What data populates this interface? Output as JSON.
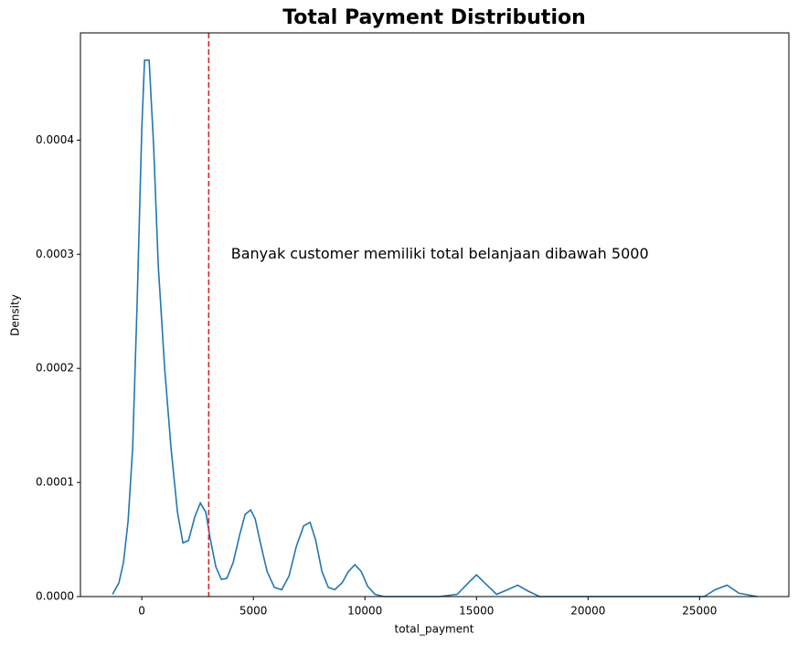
{
  "chart_data": {
    "type": "line",
    "title": "Total Payment Distribution",
    "xlabel": "total_payment",
    "ylabel": "Density",
    "x": [
      -1311,
      -1025,
      -820,
      -615,
      -410,
      -205,
      0,
      123,
      328,
      533,
      738,
      1025,
      1311,
      1598,
      1844,
      2090,
      2377,
      2623,
      2869,
      3074,
      3320,
      3566,
      3811,
      4098,
      4385,
      4631,
      4877,
      5082,
      5328,
      5615,
      5943,
      6270,
      6598,
      6926,
      7254,
      7541,
      7787,
      8074,
      8361,
      8648,
      8975,
      9262,
      9549,
      9836,
      10123,
      10451,
      10861,
      13320,
      14139,
      14631,
      15000,
      15369,
      15902,
      16393,
      16844,
      17295,
      17828,
      25205,
      25697,
      26230,
      26762,
      27582
    ],
    "series": [
      {
        "name": "total_payment",
        "color": "#1f77b4",
        "values": [
          2e-06,
          1.2e-05,
          3e-05,
          6.6e-05,
          0.00013,
          0.00026,
          0.00041,
          0.00047,
          0.00047,
          0.000394,
          0.00029,
          0.0002,
          0.00013,
          7.4e-05,
          4.7e-05,
          4.9e-05,
          7e-05,
          8.2e-05,
          7.4e-05,
          5e-05,
          2.6e-05,
          1.5e-05,
          1.6e-05,
          3e-05,
          5.4e-05,
          7.2e-05,
          7.6e-05,
          6.8e-05,
          4.6e-05,
          2.2e-05,
          8e-06,
          6e-06,
          1.8e-05,
          4.4e-05,
          6.2e-05,
          6.5e-05,
          5e-05,
          2.2e-05,
          8e-06,
          6e-06,
          1.2e-05,
          2.2e-05,
          2.8e-05,
          2.2e-05,
          9e-06,
          2e-06,
          0,
          0,
          2e-06,
          1.2e-05,
          1.9e-05,
          1.2e-05,
          2e-06,
          6e-06,
          1e-05,
          5e-06,
          0,
          0,
          6e-06,
          1e-05,
          3e-06,
          0
        ]
      }
    ],
    "xlim": [
      -2750,
      29000
    ],
    "ylim": [
      0,
      0.000494
    ],
    "xticks": [
      0,
      5000,
      10000,
      15000,
      20000,
      25000
    ],
    "yticks": [
      {
        "value": 0,
        "label": "0.0000"
      },
      {
        "value": 0.0001,
        "label": "0.0001"
      },
      {
        "value": 0.0002,
        "label": "0.0002"
      },
      {
        "value": 0.0003,
        "label": "0.0003"
      },
      {
        "value": 0.0004,
        "label": "0.0004"
      }
    ],
    "vline": {
      "x": 3000,
      "color": "#d62728"
    },
    "annotation": {
      "text": "Banyak customer memiliki total belanjaan dibawah 5000",
      "x": 4000,
      "y": 0.0003
    }
  }
}
